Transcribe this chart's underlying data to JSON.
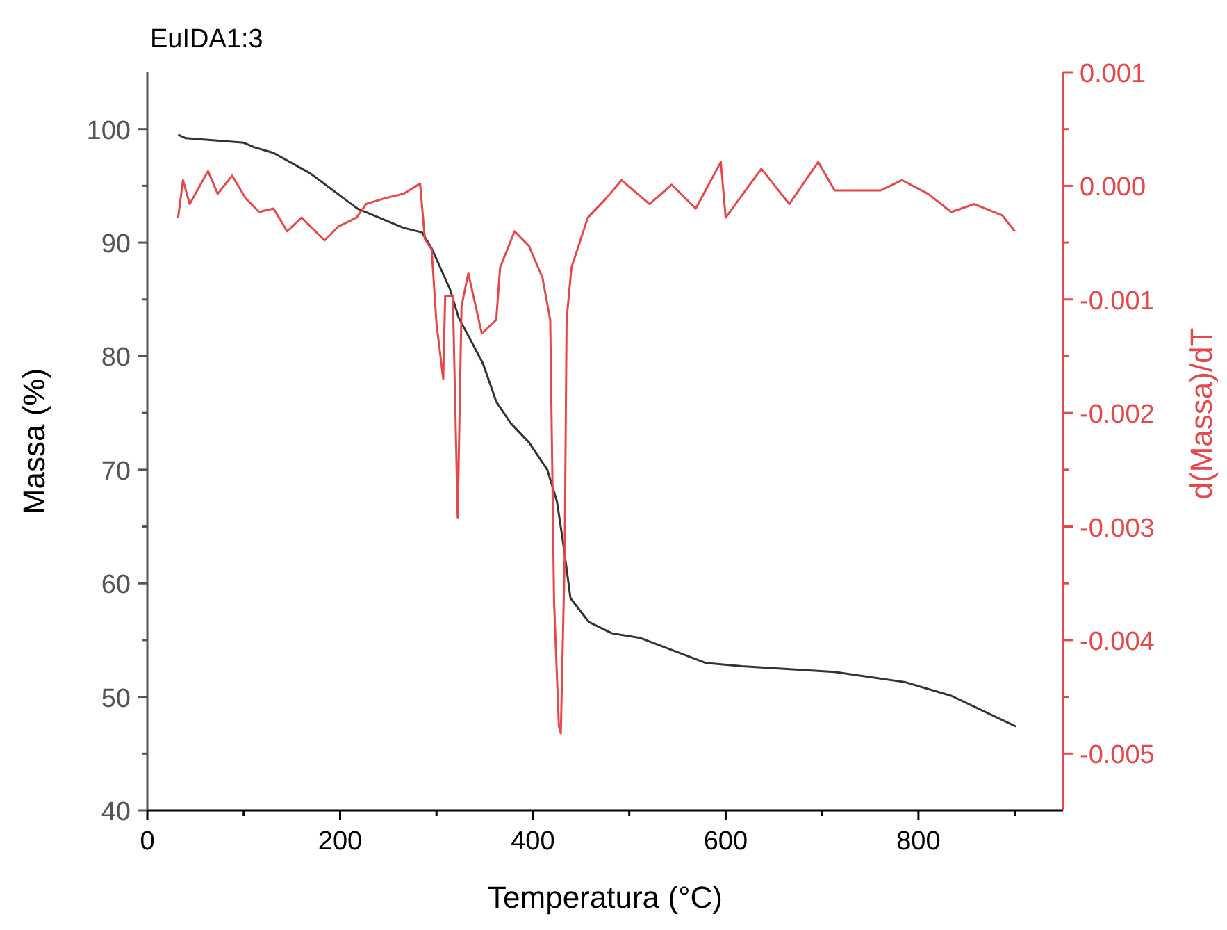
{
  "chart_data": {
    "type": "line",
    "title": "EuIDA1:3",
    "xlabel": "Temperatura (°C)",
    "ylabel": "Massa (%)",
    "y2label": "d(Massa)/dT",
    "xlim": [
      0,
      950
    ],
    "xticks": [
      0,
      {
        "value": 100,
        "label": null
      },
      200,
      {
        "value": 300,
        "label": null
      },
      400,
      {
        "value": 500,
        "label": null
      },
      600,
      {
        "value": 700,
        "label": null
      },
      800,
      {
        "value": 900,
        "label": null
      }
    ],
    "ylim": [
      40,
      105
    ],
    "yticks": [
      40,
      {
        "value": 45,
        "label": null
      },
      50,
      {
        "value": 55,
        "label": null
      },
      60,
      {
        "value": 65,
        "label": null
      },
      70,
      {
        "value": 75,
        "label": null
      },
      80,
      {
        "value": 85,
        "label": null
      },
      90,
      {
        "value": 95,
        "label": null
      },
      100
    ],
    "y2lim": [
      -0.0055,
      0.001
    ],
    "y2ticks": [
      {
        "value": -0.005,
        "label": "-0.005"
      },
      {
        "value": -0.0045,
        "label": null
      },
      {
        "value": -0.004,
        "label": "-0.004"
      },
      {
        "value": -0.0035,
        "label": null
      },
      {
        "value": -0.003,
        "label": "-0.003"
      },
      {
        "value": -0.0025,
        "label": null
      },
      {
        "value": -0.002,
        "label": "-0.002"
      },
      {
        "value": -0.0015,
        "label": null
      },
      {
        "value": -0.001,
        "label": "-0.001"
      },
      {
        "value": -0.0005,
        "label": null
      },
      {
        "value": 0,
        "label": "0.000"
      },
      {
        "value": 0.0005,
        "label": null
      },
      {
        "value": 0.001,
        "label": "0.001"
      }
    ],
    "grid": false,
    "marker": "none",
    "line_style": "solid",
    "series": [
      {
        "color": "#333333",
        "x": [
          32,
          40,
          100,
          111,
          131,
          169,
          218,
          266,
          285,
          295,
          314,
          323,
          348,
          362,
          377,
          396,
          415,
          425,
          432,
          439,
          458,
          482,
          511,
          579,
          617,
          713,
          786,
          834,
          901
        ],
        "values": [
          99.5,
          99.2,
          98.8,
          98.4,
          97.9,
          96.1,
          93.0,
          91.3,
          90.9,
          89.5,
          85.9,
          83.4,
          79.4,
          76.0,
          74.1,
          72.4,
          70.0,
          67.2,
          63.2,
          58.7,
          56.6,
          55.6,
          55.2,
          53.0,
          52.7,
          52.2,
          51.3,
          50.1,
          47.4
        ]
      },
      {
        "color": "#e8474a",
        "axis": "y2",
        "x": [
          32,
          37,
          44,
          63,
          73,
          88,
          102,
          116,
          131,
          145,
          160,
          184,
          198,
          217,
          227,
          246,
          266,
          283,
          288,
          295,
          300,
          307,
          309,
          317,
          322,
          326,
          333,
          347,
          362,
          366,
          381,
          396,
          410,
          418,
          422,
          427,
          429,
          433,
          435,
          440,
          457,
          476,
          492,
          521,
          544,
          569,
          595,
          600,
          637,
          666,
          696,
          713,
          761,
          783,
          810,
          834,
          858,
          887,
          900
        ],
        "values": [
          -0.00028,
          5e-05,
          -0.00016,
          0.00013,
          -7e-05,
          9e-05,
          -0.00011,
          -0.00023,
          -0.0002,
          -0.0004,
          -0.00028,
          -0.00048,
          -0.00036,
          -0.00028,
          -0.00016,
          -0.00011,
          -7e-05,
          2e-05,
          -0.00047,
          -0.00056,
          -0.00121,
          -0.0017,
          -0.00097,
          -0.00097,
          -0.00292,
          -0.00106,
          -0.00077,
          -0.0013,
          -0.00118,
          -0.00072,
          -0.0004,
          -0.00053,
          -0.00081,
          -0.00118,
          -0.00367,
          -0.00476,
          -0.00482,
          -0.00326,
          -0.00118,
          -0.00072,
          -0.00028,
          -0.00011,
          5e-05,
          -0.00016,
          1e-05,
          -0.0002,
          0.00021,
          -0.00028,
          0.00015,
          -0.00016,
          0.00021,
          -4e-05,
          -4e-05,
          5e-05,
          -7e-05,
          -0.00023,
          -0.00016,
          -0.00026,
          -0.0004
        ]
      }
    ]
  }
}
